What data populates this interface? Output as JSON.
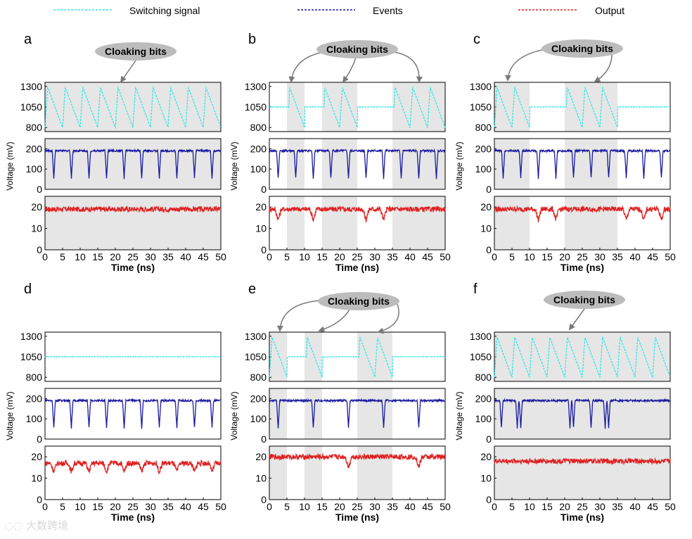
{
  "legend": [
    {
      "label": "Switching signal",
      "color": "#2ee6e6"
    },
    {
      "label": "Events",
      "color": "#1a1aa0"
    },
    {
      "label": "Output",
      "color": "#e02020"
    }
  ],
  "colors": {
    "switching": "#2ee6e6",
    "events": "#1a1aa0",
    "output": "#e02020",
    "shade": "#e6e6e6",
    "callout": "#bcbcbc"
  },
  "callout_label": "Cloaking bits",
  "watermark": "大数跨境",
  "chart_data": [
    {
      "panel": "a",
      "type": "line",
      "title": "",
      "xlabel": "Time (ns)",
      "ylabel": "Voltage (mV)",
      "xlim": [
        0,
        50
      ],
      "xticks": [
        0,
        5,
        10,
        15,
        20,
        25,
        30,
        35,
        40,
        45,
        50
      ],
      "cloak_windows": [
        [
          0,
          50
        ]
      ],
      "event_times": [
        2.5,
        7.5,
        12.5,
        17.5,
        22.5,
        27.5,
        32.5,
        37.5,
        42.5,
        47.5
      ],
      "output_dip_times": [],
      "series": [
        {
          "name": "Switching signal",
          "ylim": [
            750,
            1350
          ],
          "yticks": [
            800,
            1050,
            1300
          ],
          "baseline": 1050,
          "peak": 1290,
          "trough": 800
        },
        {
          "name": "Events",
          "ylim": [
            0,
            250
          ],
          "yticks": [
            0,
            100,
            200
          ],
          "baseline": 190,
          "dip_min": 55
        },
        {
          "name": "Output",
          "ylim": [
            0,
            25
          ],
          "yticks": [
            0,
            10,
            20
          ],
          "baseline": 19,
          "dip_depth": 4
        }
      ]
    },
    {
      "panel": "b",
      "type": "line",
      "title": "",
      "xlabel": "Time (ns)",
      "ylabel": "Voltage (mV)",
      "xlim": [
        0,
        50
      ],
      "xticks": [
        0,
        5,
        10,
        15,
        20,
        25,
        30,
        35,
        40,
        45,
        50
      ],
      "cloak_windows": [
        [
          5,
          10
        ],
        [
          15,
          25
        ],
        [
          35,
          50
        ]
      ],
      "event_times": [
        2.5,
        7.5,
        12.5,
        17.5,
        22.5,
        27.5,
        32.5,
        37.5,
        42.5,
        47.5
      ],
      "output_dip_times": [
        2.5,
        12.5,
        27.5,
        32.5
      ],
      "series": [
        {
          "name": "Switching signal",
          "ylim": [
            750,
            1350
          ],
          "yticks": [
            800,
            1050,
            1300
          ],
          "baseline": 1050,
          "peak": 1290,
          "trough": 800
        },
        {
          "name": "Events",
          "ylim": [
            0,
            250
          ],
          "yticks": [
            0,
            100,
            200
          ],
          "baseline": 190,
          "dip_min": 55
        },
        {
          "name": "Output",
          "ylim": [
            0,
            25
          ],
          "yticks": [
            0,
            10,
            20
          ],
          "baseline": 19,
          "dip_depth": 5
        }
      ]
    },
    {
      "panel": "c",
      "type": "line",
      "title": "",
      "xlabel": "Time (ns)",
      "ylabel": "Voltage (mV)",
      "xlim": [
        0,
        50
      ],
      "xticks": [
        0,
        5,
        10,
        15,
        20,
        25,
        30,
        35,
        40,
        45,
        50
      ],
      "cloak_windows": [
        [
          0,
          10
        ],
        [
          20,
          35
        ]
      ],
      "event_times": [
        2.5,
        7.5,
        12.5,
        17.5,
        22.5,
        27.5,
        32.5,
        37.5,
        42.5,
        47.5
      ],
      "output_dip_times": [
        12.5,
        17.5,
        37.5,
        42.5,
        47.5
      ],
      "series": [
        {
          "name": "Switching signal",
          "ylim": [
            750,
            1350
          ],
          "yticks": [
            800,
            1050,
            1300
          ],
          "baseline": 1050,
          "peak": 1290,
          "trough": 800
        },
        {
          "name": "Events",
          "ylim": [
            0,
            250
          ],
          "yticks": [
            0,
            100,
            200
          ],
          "baseline": 190,
          "dip_min": 55
        },
        {
          "name": "Output",
          "ylim": [
            0,
            25
          ],
          "yticks": [
            0,
            10,
            20
          ],
          "baseline": 19,
          "dip_depth": 5
        }
      ]
    },
    {
      "panel": "d",
      "type": "line",
      "title": "",
      "xlabel": "Time (ns)",
      "ylabel": "Voltage (mV)",
      "xlim": [
        0,
        50
      ],
      "xticks": [
        0,
        5,
        10,
        15,
        20,
        25,
        30,
        35,
        40,
        45,
        50
      ],
      "cloak_windows": [],
      "event_times": [
        2.5,
        7.5,
        12.5,
        17.5,
        22.5,
        27.5,
        32.5,
        37.5,
        42.5,
        47.5
      ],
      "output_dip_times": [
        2.5,
        7.5,
        12.5,
        17.5,
        22.5,
        27.5,
        32.5,
        37.5,
        42.5,
        47.5
      ],
      "series": [
        {
          "name": "Switching signal",
          "ylim": [
            750,
            1350
          ],
          "yticks": [
            800,
            1050,
            1300
          ],
          "baseline": 1050,
          "peak": 1050,
          "trough": 1050
        },
        {
          "name": "Events",
          "ylim": [
            0,
            250
          ],
          "yticks": [
            0,
            100,
            200
          ],
          "baseline": 190,
          "dip_min": 55
        },
        {
          "name": "Output",
          "ylim": [
            0,
            25
          ],
          "yticks": [
            0,
            10,
            20
          ],
          "baseline": 17,
          "dip_depth": 4
        }
      ]
    },
    {
      "panel": "e",
      "type": "line",
      "title": "",
      "xlabel": "Time (ns)",
      "ylabel": "Voltage (mV)",
      "xlim": [
        0,
        50
      ],
      "xticks": [
        0,
        5,
        10,
        15,
        20,
        25,
        30,
        35,
        40,
        45,
        50
      ],
      "cloak_windows": [
        [
          0,
          5
        ],
        [
          10,
          15
        ],
        [
          25,
          35
        ]
      ],
      "event_times": [
        2.5,
        12.5,
        22.5,
        32.5,
        42.5
      ],
      "output_dip_times": [
        22.5,
        42.5
      ],
      "series": [
        {
          "name": "Switching signal",
          "ylim": [
            750,
            1350
          ],
          "yticks": [
            800,
            1050,
            1300
          ],
          "baseline": 1050,
          "peak": 1290,
          "trough": 800
        },
        {
          "name": "Events",
          "ylim": [
            0,
            250
          ],
          "yticks": [
            0,
            100,
            200
          ],
          "baseline": 190,
          "dip_min": 55
        },
        {
          "name": "Output",
          "ylim": [
            0,
            25
          ],
          "yticks": [
            0,
            10,
            20
          ],
          "baseline": 20,
          "dip_depth": 5
        }
      ]
    },
    {
      "panel": "f",
      "type": "line",
      "title": "",
      "xlabel": "Time (ns)",
      "ylabel": "Voltage (mV)",
      "xlim": [
        0,
        50
      ],
      "xticks": [
        0,
        5,
        10,
        15,
        20,
        25,
        30,
        35,
        40,
        45,
        50
      ],
      "cloak_windows": [
        [
          0,
          50
        ]
      ],
      "event_times": [
        2.0,
        6.5,
        7.5,
        21.5,
        22.5,
        27.5,
        31.5,
        32.5
      ],
      "output_dip_times": [],
      "series": [
        {
          "name": "Switching signal",
          "ylim": [
            750,
            1350
          ],
          "yticks": [
            800,
            1050,
            1300
          ],
          "baseline": 1050,
          "peak": 1290,
          "trough": 800
        },
        {
          "name": "Events",
          "ylim": [
            0,
            250
          ],
          "yticks": [
            0,
            100,
            200
          ],
          "baseline": 190,
          "dip_min": 55
        },
        {
          "name": "Output",
          "ylim": [
            0,
            25
          ],
          "yticks": [
            0,
            10,
            20
          ],
          "baseline": 18,
          "dip_depth": 1
        }
      ]
    }
  ]
}
